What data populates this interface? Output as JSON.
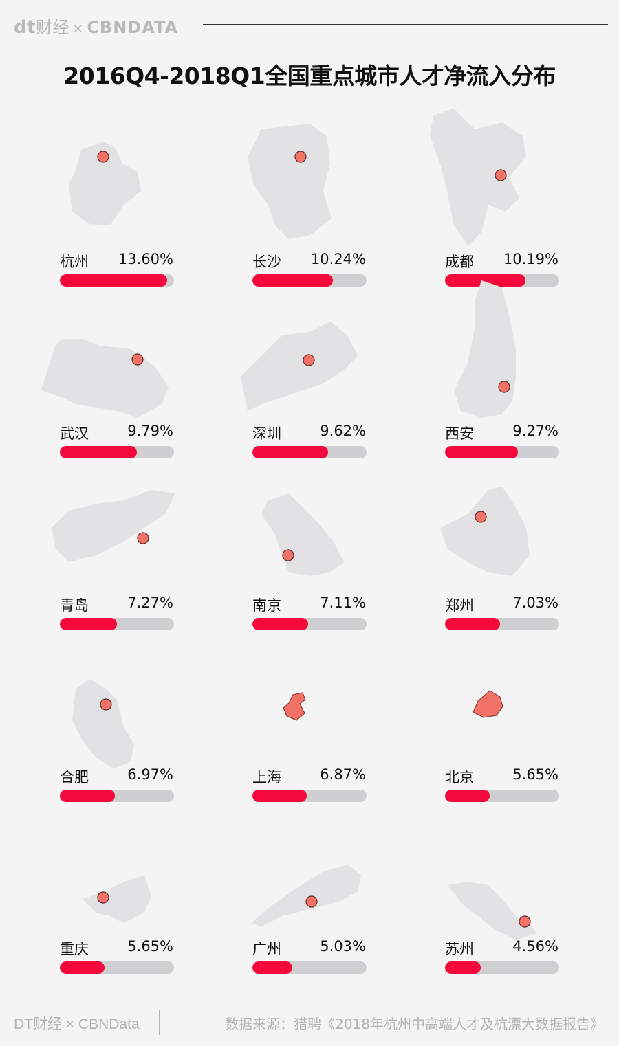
{
  "header": {
    "logo_dt": "dt",
    "logo_caijing": "财经",
    "logo_x": "×",
    "logo_cbn": "CBNDATA"
  },
  "chart_data": {
    "type": "bar",
    "title": "2016Q4-2018Q1全国重点城市人才净流入分布",
    "categories": [
      "杭州",
      "长沙",
      "成都",
      "武汉",
      "深圳",
      "西安",
      "青岛",
      "南京",
      "郑州",
      "合肥",
      "上海",
      "北京",
      "重庆",
      "广州",
      "苏州"
    ],
    "values": [
      13.6,
      10.24,
      10.19,
      9.79,
      9.62,
      9.27,
      7.27,
      7.11,
      7.03,
      6.97,
      6.87,
      5.65,
      5.65,
      5.03,
      4.56
    ],
    "labels": [
      "13.60%",
      "10.24%",
      "10.19%",
      "9.79%",
      "9.62%",
      "9.27%",
      "7.27%",
      "7.11%",
      "7.03%",
      "6.97%",
      "6.87%",
      "5.65%",
      "5.65%",
      "5.03%",
      "4.56%"
    ],
    "unit": "%",
    "bar_max": 14.5,
    "colors": {
      "bar": "#f5093d",
      "track": "#cfcfd2",
      "map": "#e2e2e4",
      "marker": "#f27268",
      "municipality": "#f27268"
    }
  },
  "footer": {
    "left": "DT财经 × CBNData",
    "source": "数据来源：猎聘《2018年杭州中高端人才及杭漂大数据报告》"
  }
}
